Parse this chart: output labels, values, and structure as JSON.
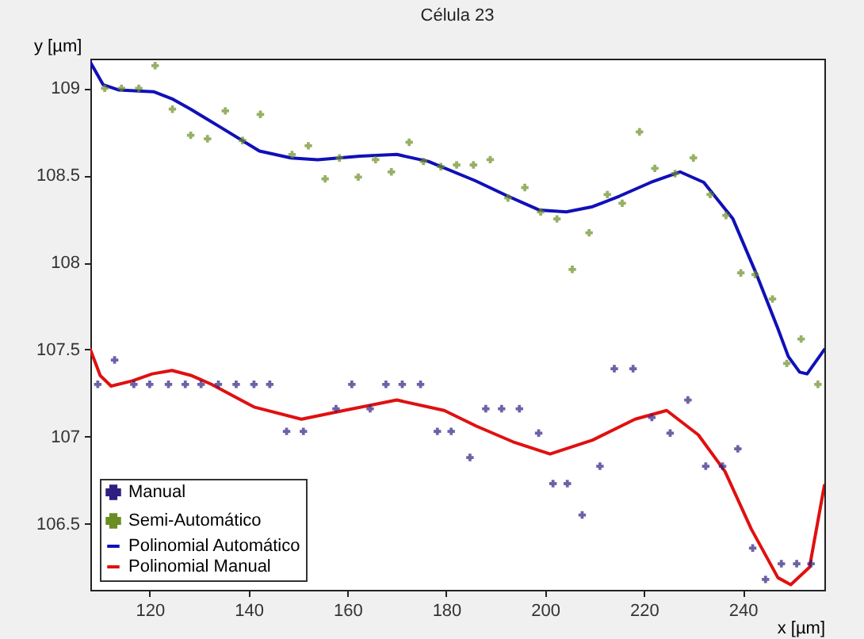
{
  "chart_data": {
    "type": "scatter",
    "title": "Célula 23",
    "xlabel": "x [µm]",
    "ylabel": "y [µm]",
    "xlim": [
      108,
      256.5
    ],
    "ylim": [
      106.12,
      109.17
    ],
    "xticks": [
      120,
      140,
      160,
      180,
      200,
      220,
      240
    ],
    "yticks": [
      106.5,
      107,
      107.5,
      108,
      108.5,
      109
    ],
    "grid": false,
    "legend": "bottom left",
    "series": [
      {
        "name": "Manual",
        "marker": "cross",
        "color": "#2e1f80",
        "x": [
          109.5,
          112.9,
          116.8,
          120.0,
          123.8,
          127.2,
          130.4,
          133.9,
          137.5,
          141.1,
          144.3,
          147.7,
          151.1,
          157.7,
          160.9,
          164.6,
          167.8,
          171.1,
          174.8,
          178.2,
          181.0,
          184.8,
          188.0,
          191.2,
          194.8,
          198.7,
          201.6,
          204.5,
          207.5,
          211.1,
          214.0,
          217.8,
          221.6,
          225.3,
          228.9,
          232.5,
          235.9,
          239.0,
          242.0,
          244.6,
          247.8,
          250.9,
          253.8
        ],
        "values": [
          107.3,
          107.44,
          107.3,
          107.3,
          107.3,
          107.3,
          107.3,
          107.3,
          107.3,
          107.3,
          107.3,
          107.03,
          107.03,
          107.16,
          107.3,
          107.16,
          107.3,
          107.3,
          107.3,
          107.03,
          107.03,
          106.88,
          107.16,
          107.16,
          107.16,
          107.02,
          106.73,
          106.73,
          106.55,
          106.83,
          107.39,
          107.39,
          107.11,
          107.02,
          107.21,
          106.83,
          106.83,
          106.93,
          106.36,
          106.18,
          106.27,
          106.27,
          106.27
        ]
      },
      {
        "name": "Semi-Automático",
        "marker": "cross",
        "color": "#6b8e23",
        "x": [
          110.9,
          114.3,
          117.8,
          121.1,
          124.6,
          128.3,
          131.7,
          135.3,
          138.8,
          142.4,
          148.8,
          152.1,
          155.5,
          158.4,
          162.2,
          165.7,
          168.9,
          172.5,
          175.4,
          178.9,
          182.1,
          185.5,
          188.9,
          192.5,
          195.9,
          199.1,
          202.4,
          205.5,
          208.9,
          212.6,
          215.6,
          219.1,
          222.2,
          226.3,
          230.0,
          233.4,
          236.6,
          239.6,
          242.5,
          246.0,
          248.9,
          251.8,
          255.2
        ],
        "values": [
          109.0,
          109.0,
          109.0,
          109.13,
          108.88,
          108.73,
          108.71,
          108.87,
          108.7,
          108.85,
          108.62,
          108.67,
          108.48,
          108.6,
          108.49,
          108.59,
          108.52,
          108.69,
          108.58,
          108.55,
          108.56,
          108.56,
          108.59,
          108.37,
          108.43,
          108.29,
          108.25,
          107.96,
          108.17,
          108.39,
          108.34,
          108.75,
          108.54,
          108.51,
          108.6,
          108.39,
          108.27,
          107.94,
          107.93,
          107.79,
          107.42,
          107.56,
          107.3
        ]
      },
      {
        "name": "Polinomial Automático",
        "type": "line",
        "color": "#1010b8",
        "line_style": "solid",
        "x": [
          108,
          110.6,
          113.8,
          120.8,
          124.5,
          128.3,
          134.7,
          142.2,
          148.6,
          154.0,
          162.5,
          170.0,
          176.4,
          185.8,
          192.5,
          198.9,
          204.3,
          209.6,
          215.0,
          221.4,
          227.3,
          232.1,
          238.0,
          242.8,
          247.1,
          249.2,
          251.5,
          253.0,
          256.5
        ],
        "values": [
          109.15,
          109.02,
          108.99,
          108.98,
          108.94,
          108.88,
          108.77,
          108.64,
          108.6,
          108.59,
          108.61,
          108.62,
          108.58,
          108.47,
          108.38,
          108.3,
          108.29,
          108.32,
          108.38,
          108.46,
          108.52,
          108.46,
          108.25,
          107.93,
          107.62,
          107.46,
          107.37,
          107.36,
          107.5
        ]
      },
      {
        "name": "Polinomial Manual",
        "type": "line",
        "color": "#e01010",
        "line_style": "solid",
        "x": [
          108,
          110,
          112.2,
          116.5,
          120.5,
          124.5,
          128.5,
          132.5,
          141.1,
          150.7,
          159.3,
          170.0,
          179.6,
          186.1,
          193.5,
          201.0,
          209.6,
          218.2,
          224.6,
          231.0,
          236.4,
          241.7,
          247.1,
          249.7,
          253.5,
          256.5
        ],
        "values": [
          107.5,
          107.35,
          107.29,
          107.32,
          107.36,
          107.38,
          107.35,
          107.3,
          107.17,
          107.1,
          107.15,
          107.21,
          107.15,
          107.06,
          106.97,
          106.9,
          106.98,
          107.1,
          107.15,
          107.01,
          106.8,
          106.47,
          106.19,
          106.15,
          106.25,
          106.72
        ]
      }
    ]
  }
}
